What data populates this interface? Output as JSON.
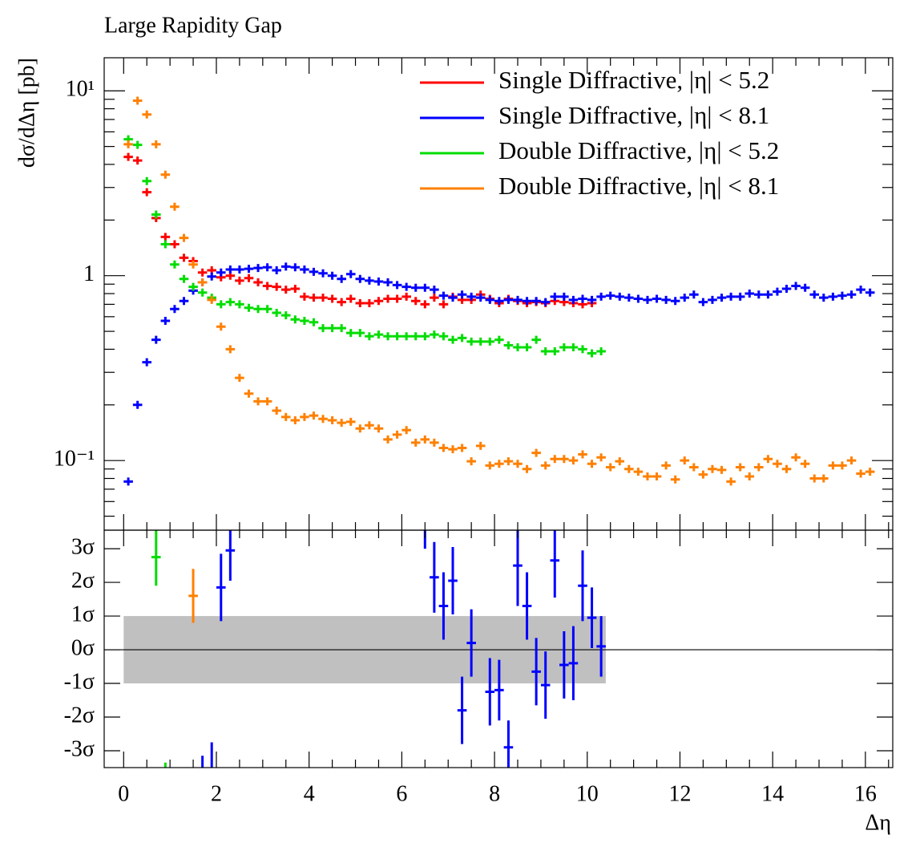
{
  "chart_data": [
    {
      "type": "scatter",
      "title": "Large Rapidity Gap",
      "xlabel": "Δη",
      "ylabel": "dσ/dΔη [pb]",
      "log_y": true,
      "legend": "upper right",
      "xlim": [
        -0.42,
        16.59
      ],
      "ylim": [
        0.042,
        15.1
      ],
      "xticks": [
        0,
        2,
        4,
        6,
        8,
        10,
        12,
        14,
        16
      ],
      "xminorticks": [
        0.5,
        1,
        1.5,
        2.5,
        3,
        3.5,
        4.5,
        5,
        5.5,
        6.5,
        7,
        7.5,
        8.5,
        9,
        9.5,
        10.5,
        11,
        11.5,
        12.5,
        13,
        13.5,
        14.5,
        15,
        15.5,
        16.5
      ],
      "yticks": [
        {
          "value": 10,
          "label": "10¹"
        },
        1,
        {
          "value": 0.1,
          "label": "10⁻¹"
        }
      ],
      "yminorticks": [
        0.05,
        0.06,
        0.07,
        0.08,
        0.09,
        0.2,
        0.3,
        0.4,
        0.5,
        0.6,
        0.7,
        0.8,
        0.9,
        2,
        3,
        4,
        5,
        6,
        7,
        8,
        9
      ],
      "bin_width": 0.2,
      "x": [
        0.1,
        0.3,
        0.5,
        0.7,
        0.9,
        1.1,
        1.3,
        1.5,
        1.7,
        1.9,
        2.1,
        2.3,
        2.5,
        2.7,
        2.9,
        3.1,
        3.3,
        3.5,
        3.7,
        3.9,
        4.1,
        4.3,
        4.5,
        4.7,
        4.9,
        5.1,
        5.3,
        5.5,
        5.7,
        5.9,
        6.1,
        6.3,
        6.5,
        6.7,
        6.9,
        7.1,
        7.3,
        7.5,
        7.7,
        7.9,
        8.1,
        8.3,
        8.5,
        8.7,
        8.9,
        9.1,
        9.3,
        9.5,
        9.7,
        9.9,
        10.1,
        10.3,
        10.5,
        10.7,
        10.9,
        11.1,
        11.3,
        11.5,
        11.7,
        11.9,
        12.1,
        12.3,
        12.5,
        12.7,
        12.9,
        13.1,
        13.3,
        13.5,
        13.7,
        13.9,
        14.1,
        14.3,
        14.5,
        14.7,
        14.9,
        15.1,
        15.3,
        15.5,
        15.7,
        15.9,
        16.1
      ],
      "series": [
        {
          "name": "Single Diffractive, |η| < 5.2",
          "color": "#ff0000",
          "values": [
            4.39,
            4.2,
            2.83,
            2.05,
            1.62,
            1.48,
            1.25,
            1.2,
            1.04,
            1.07,
            0.98,
            1.0,
            0.94,
            0.97,
            0.92,
            0.88,
            0.87,
            0.84,
            0.85,
            0.77,
            0.76,
            0.76,
            0.75,
            0.72,
            0.75,
            0.71,
            0.71,
            0.73,
            0.75,
            0.75,
            0.77,
            0.73,
            0.7,
            0.76,
            0.7,
            0.77,
            0.74,
            0.74,
            0.79,
            0.75,
            0.71,
            0.75,
            0.73,
            0.71,
            0.72,
            0.71,
            0.73,
            0.72,
            0.71,
            0.7,
            0.71,
            null,
            null,
            null,
            null,
            null,
            null,
            null,
            null,
            null,
            null,
            null,
            null,
            null,
            null,
            null,
            null,
            null,
            null,
            null,
            null,
            null,
            null,
            null,
            null,
            null,
            null,
            null,
            null,
            null,
            null
          ]
        },
        {
          "name": "Single Diffractive, |η| < 8.1",
          "color": "#0000ff",
          "values": [
            0.077,
            0.2,
            0.34,
            0.45,
            0.57,
            0.66,
            0.73,
            0.83,
            0.92,
            0.99,
            1.04,
            1.08,
            1.08,
            1.09,
            1.1,
            1.11,
            1.07,
            1.12,
            1.11,
            1.08,
            1.05,
            1.03,
            1.0,
            0.96,
            1.02,
            0.96,
            0.94,
            0.93,
            0.92,
            0.89,
            0.87,
            0.86,
            0.86,
            0.84,
            0.78,
            0.76,
            0.79,
            0.77,
            0.76,
            0.74,
            0.73,
            0.74,
            0.74,
            0.73,
            0.73,
            0.72,
            0.77,
            0.77,
            0.74,
            0.75,
            0.74,
            0.77,
            0.78,
            0.77,
            0.76,
            0.75,
            0.74,
            0.75,
            0.74,
            0.73,
            0.76,
            0.79,
            0.72,
            0.74,
            0.76,
            0.77,
            0.77,
            0.8,
            0.79,
            0.79,
            0.82,
            0.85,
            0.88,
            0.86,
            0.79,
            0.76,
            0.77,
            0.78,
            0.79,
            0.84,
            0.81
          ]
        },
        {
          "name": "Double Diffractive, |η| < 5.2",
          "color": "#00dd00",
          "values": [
            5.47,
            5.1,
            3.25,
            2.14,
            1.48,
            1.15,
            0.96,
            0.87,
            0.81,
            0.76,
            0.7,
            0.72,
            0.7,
            0.67,
            0.66,
            0.66,
            0.63,
            0.61,
            0.58,
            0.57,
            0.56,
            0.52,
            0.52,
            0.52,
            0.49,
            0.49,
            0.47,
            0.48,
            0.47,
            0.47,
            0.47,
            0.47,
            0.47,
            0.48,
            0.47,
            0.45,
            0.46,
            0.44,
            0.44,
            0.44,
            0.45,
            0.42,
            0.41,
            0.41,
            0.45,
            0.39,
            0.39,
            0.41,
            0.41,
            0.4,
            0.38,
            0.39,
            null,
            null,
            null,
            null,
            null,
            null,
            null,
            null,
            null,
            null,
            null,
            null,
            null,
            null,
            null,
            null,
            null,
            null,
            null,
            null,
            null,
            null,
            null,
            null,
            null,
            null,
            null,
            null,
            null
          ]
        },
        {
          "name": "Double Diffractive, |η| < 8.1",
          "color": "#ff8000",
          "values": [
            5.14,
            8.85,
            7.45,
            5.14,
            3.52,
            2.36,
            1.6,
            1.15,
            0.92,
            0.74,
            0.53,
            0.4,
            0.28,
            0.23,
            0.209,
            0.209,
            0.186,
            0.172,
            0.165,
            0.172,
            0.175,
            0.168,
            0.165,
            0.16,
            0.162,
            0.149,
            0.155,
            0.149,
            0.13,
            0.138,
            0.146,
            0.125,
            0.13,
            0.125,
            0.117,
            0.115,
            0.117,
            0.099,
            0.12,
            0.094,
            0.096,
            0.099,
            0.096,
            0.09,
            0.11,
            0.094,
            0.102,
            0.102,
            0.1,
            0.108,
            0.096,
            0.104,
            0.092,
            0.099,
            0.09,
            0.087,
            0.082,
            0.082,
            0.094,
            0.079,
            0.1,
            0.092,
            0.084,
            0.09,
            0.089,
            0.077,
            0.092,
            0.082,
            0.092,
            0.102,
            0.096,
            0.09,
            0.104,
            0.096,
            0.08,
            0.08,
            0.094,
            0.094,
            0.1,
            0.085,
            0.087
          ]
        }
      ]
    },
    {
      "type": "errorbar",
      "ylim": [
        -3.5,
        3.55
      ],
      "yticks": [
        {
          "value": 3,
          "label": "3σ"
        },
        {
          "value": 2,
          "label": "2σ"
        },
        {
          "value": 1,
          "label": "1σ"
        },
        {
          "value": 0,
          "label": "0σ"
        },
        {
          "value": -1,
          "label": "-1σ"
        },
        {
          "value": -2,
          "label": "-2σ"
        },
        {
          "value": -3,
          "label": "-3σ"
        }
      ],
      "band": {
        "x": [
          0,
          10.4
        ],
        "lower": -1,
        "upper": 1,
        "color": "#c0c0c0"
      },
      "series": [
        {
          "color": "#0000ff",
          "x": [
            1.7,
            1.9,
            2.1,
            2.3,
            6.5,
            6.7,
            6.9,
            7.1,
            7.3,
            7.5,
            7.9,
            8.1,
            8.3,
            8.5,
            8.7,
            8.9,
            9.1,
            9.3,
            9.5,
            9.7,
            9.9,
            10.1,
            10.3
          ],
          "values": [
            -4,
            -3.7,
            1.85,
            2.95,
            4,
            2.15,
            1.3,
            2.05,
            -1.8,
            0.2,
            -1.25,
            -1.2,
            -2.9,
            2.5,
            1.3,
            -0.65,
            -1.05,
            2.65,
            -0.45,
            -0.4,
            1.9,
            0.95,
            0.1
          ],
          "errors": [
            0.85,
            0.95,
            1.0,
            0.9,
            1.0,
            1.05,
            1.0,
            1.0,
            1.0,
            1.0,
            1.0,
            0.9,
            0.8,
            1.2,
            1.0,
            1.0,
            1.0,
            1.1,
            1.0,
            1.1,
            1.05,
            0.9,
            0.9
          ]
        },
        {
          "color": "#00dd00",
          "x": [
            0.7,
            0.9
          ],
          "values": [
            2.75,
            -4
          ],
          "errors": [
            0.85,
            0.65
          ]
        },
        {
          "color": "#ff8000",
          "x": [
            1.5
          ],
          "values": [
            1.6
          ],
          "errors": [
            0.8
          ]
        }
      ]
    }
  ]
}
